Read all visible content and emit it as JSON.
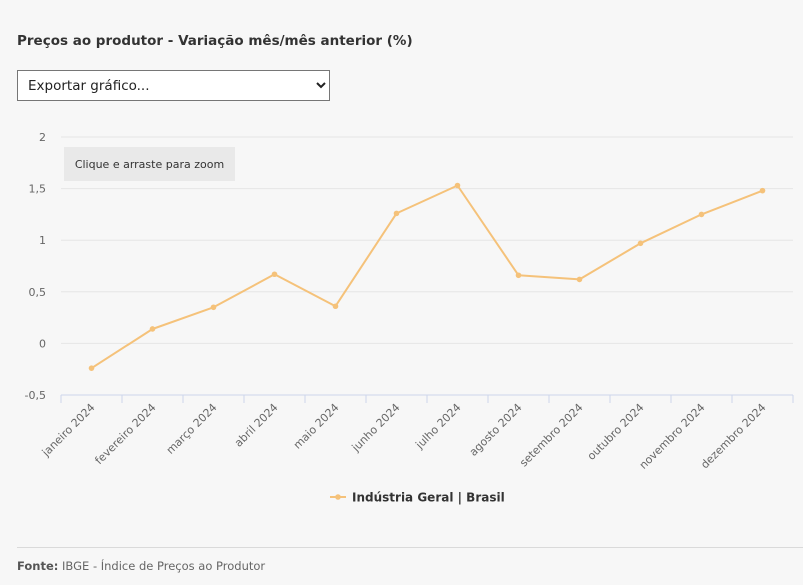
{
  "title": "Preços ao produtor - Variação mês/mês anterior (%)",
  "export": {
    "selected": "Exportar gráfico..."
  },
  "zoom_hint": "Clique e arraste para zoom",
  "footer": {
    "label": "Fonte:",
    "text": "IBGE - Índice de Preços ao Produtor"
  },
  "colors": {
    "series": "#f5c27a",
    "grid": "#e6e6e6",
    "axis": "#ccd6eb",
    "text": "#666666"
  },
  "chart_data": {
    "type": "line",
    "categories": [
      "janeiro 2024",
      "fevereiro 2024",
      "março 2024",
      "abril 2024",
      "maio 2024",
      "junho 2024",
      "julho 2024",
      "agosto 2024",
      "setembro 2024",
      "outubro 2024",
      "novembro 2024",
      "dezembro 2024"
    ],
    "series": [
      {
        "name": "Indústria Geral | Brasil",
        "values": [
          -0.24,
          0.14,
          0.35,
          0.67,
          0.36,
          1.26,
          1.53,
          0.66,
          0.62,
          0.97,
          1.25,
          1.48
        ]
      }
    ],
    "ylim": [
      -0.5,
      2
    ],
    "yticks": [
      -0.5,
      0,
      0.5,
      1,
      1.5,
      2
    ],
    "ytick_labels": [
      "-0,5",
      "0",
      "0,5",
      "1",
      "1,5",
      "2"
    ],
    "grid": true,
    "legend": "bottom"
  }
}
